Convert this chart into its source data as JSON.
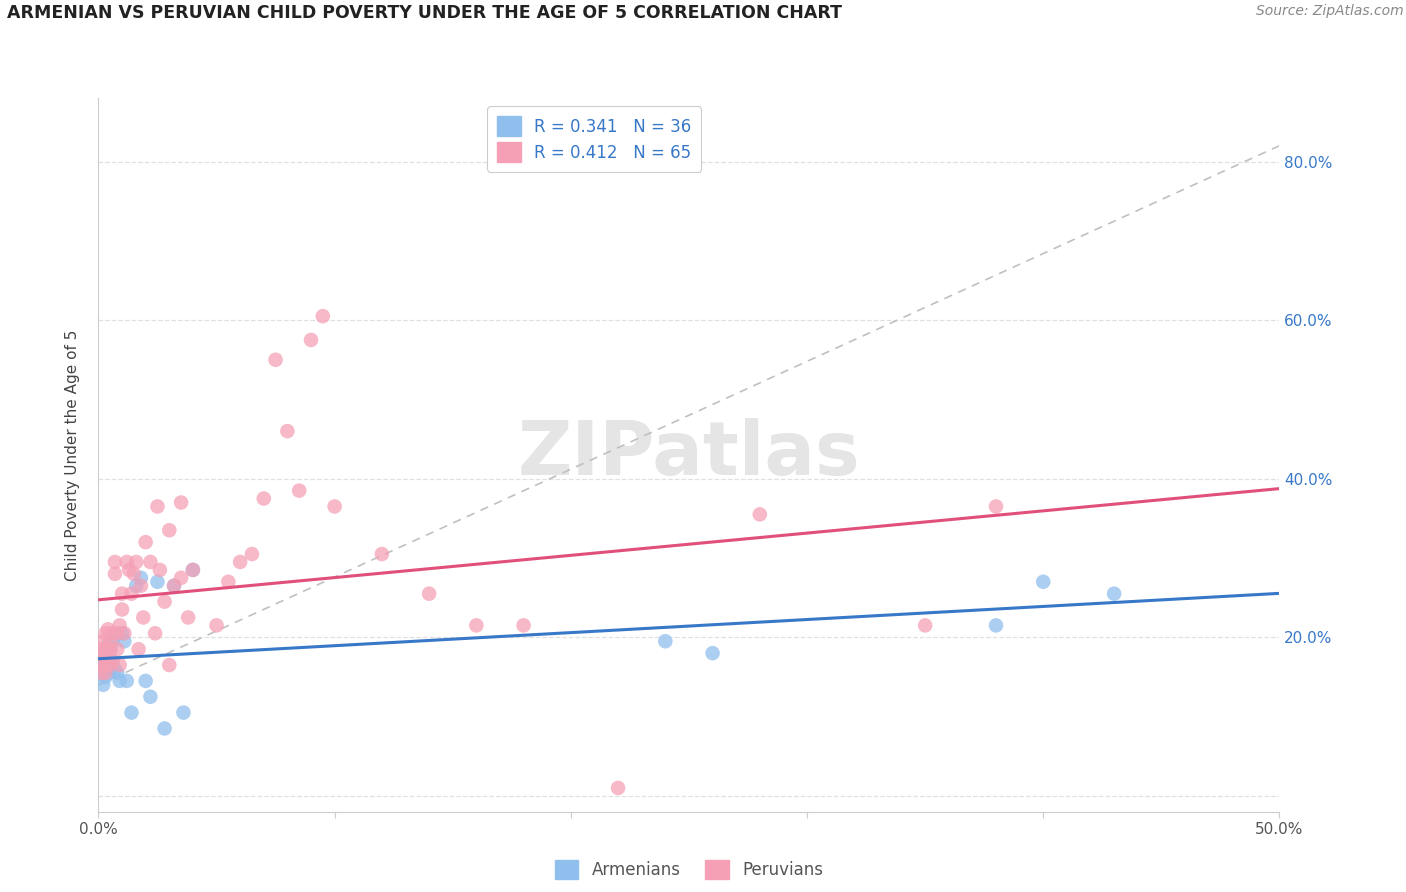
{
  "title": "ARMENIAN VS PERUVIAN CHILD POVERTY UNDER THE AGE OF 5 CORRELATION CHART",
  "source": "Source: ZipAtlas.com",
  "ylabel": "Child Poverty Under the Age of 5",
  "xlim": [
    0.0,
    0.5
  ],
  "ylim": [
    -0.02,
    0.88
  ],
  "xticks": [
    0.0,
    0.1,
    0.2,
    0.3,
    0.4,
    0.5
  ],
  "xticklabels": [
    "0.0%",
    "",
    "",
    "",
    "",
    "50.0%"
  ],
  "yticks": [
    0.0,
    0.2,
    0.4,
    0.6,
    0.8
  ],
  "yticklabels": [
    "",
    "20.0%",
    "40.0%",
    "60.0%",
    "80.0%"
  ],
  "armenian_color": "#91bfed",
  "peruvian_color": "#f5a0b5",
  "armenian_line_color": "#3878c8",
  "peruvian_line_color": "#e0507a",
  "diagonal_line_color": "#c0c0c0",
  "grid_color": "#e0e0e0",
  "background_color": "#ffffff",
  "watermark_text": "ZIPatlas",
  "watermark_color": "#d0d0d0",
  "legend_armenian_label": "R = 0.341   N = 36",
  "legend_peruvian_label": "R = 0.412   N = 65",
  "legend_bottom_armenian": "Armenians",
  "legend_bottom_peruvian": "Peruvians",
  "armenian_x": [
    0.001,
    0.001,
    0.001,
    0.002,
    0.002,
    0.002,
    0.003,
    0.003,
    0.003,
    0.004,
    0.004,
    0.005,
    0.005,
    0.006,
    0.006,
    0.007,
    0.008,
    0.009,
    0.01,
    0.011,
    0.012,
    0.014,
    0.016,
    0.018,
    0.02,
    0.022,
    0.025,
    0.028,
    0.032,
    0.036,
    0.04,
    0.24,
    0.26,
    0.38,
    0.4,
    0.43
  ],
  "armenian_y": [
    0.155,
    0.165,
    0.17,
    0.14,
    0.165,
    0.175,
    0.15,
    0.165,
    0.18,
    0.155,
    0.19,
    0.16,
    0.185,
    0.17,
    0.195,
    0.16,
    0.155,
    0.145,
    0.205,
    0.195,
    0.145,
    0.105,
    0.265,
    0.275,
    0.145,
    0.125,
    0.27,
    0.085,
    0.265,
    0.105,
    0.285,
    0.195,
    0.18,
    0.215,
    0.27,
    0.255
  ],
  "peruvian_x": [
    0.001,
    0.001,
    0.001,
    0.002,
    0.002,
    0.002,
    0.003,
    0.003,
    0.003,
    0.004,
    0.004,
    0.005,
    0.005,
    0.005,
    0.006,
    0.006,
    0.007,
    0.007,
    0.008,
    0.008,
    0.009,
    0.009,
    0.01,
    0.01,
    0.011,
    0.012,
    0.013,
    0.014,
    0.015,
    0.016,
    0.017,
    0.018,
    0.019,
    0.02,
    0.022,
    0.024,
    0.026,
    0.028,
    0.03,
    0.032,
    0.035,
    0.038,
    0.04,
    0.05,
    0.055,
    0.06,
    0.065,
    0.07,
    0.075,
    0.08,
    0.085,
    0.09,
    0.095,
    0.1,
    0.12,
    0.14,
    0.16,
    0.18,
    0.22,
    0.025,
    0.03,
    0.035,
    0.28,
    0.35,
    0.38
  ],
  "peruvian_y": [
    0.155,
    0.17,
    0.185,
    0.165,
    0.18,
    0.195,
    0.155,
    0.175,
    0.205,
    0.185,
    0.21,
    0.165,
    0.195,
    0.185,
    0.17,
    0.205,
    0.28,
    0.295,
    0.185,
    0.205,
    0.165,
    0.215,
    0.235,
    0.255,
    0.205,
    0.295,
    0.285,
    0.255,
    0.28,
    0.295,
    0.185,
    0.265,
    0.225,
    0.32,
    0.295,
    0.205,
    0.285,
    0.245,
    0.165,
    0.265,
    0.275,
    0.225,
    0.285,
    0.215,
    0.27,
    0.295,
    0.305,
    0.375,
    0.55,
    0.46,
    0.385,
    0.575,
    0.605,
    0.365,
    0.305,
    0.255,
    0.215,
    0.215,
    0.01,
    0.365,
    0.335,
    0.37,
    0.355,
    0.215,
    0.365
  ]
}
